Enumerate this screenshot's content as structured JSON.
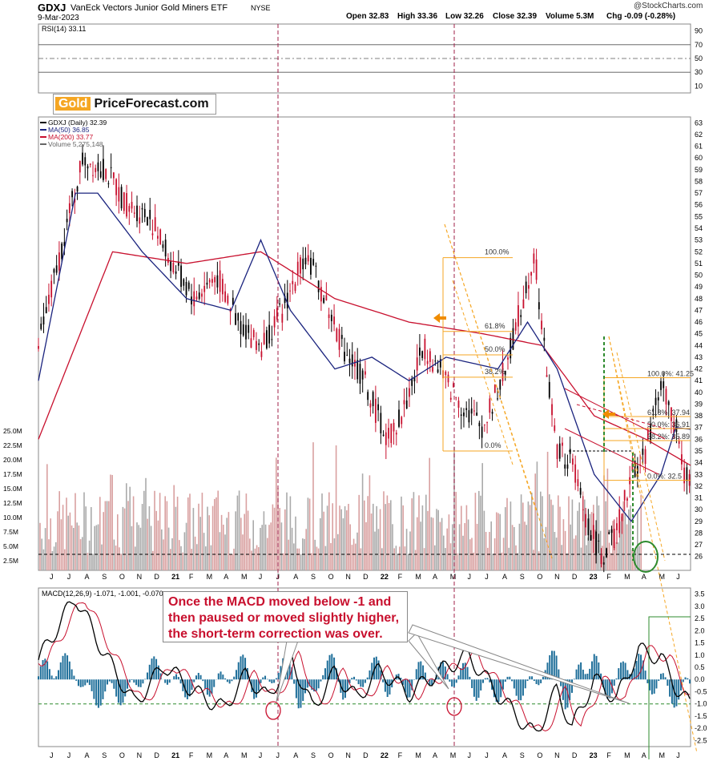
{
  "header": {
    "symbol": "GDXJ",
    "name": "VanEck Vectors Junior Gold Miners ETF",
    "exchange": "NYSE",
    "date": "9-Mar-2023",
    "open": "Open 32.83",
    "high": "High 33.36",
    "low": "Low 32.26",
    "close": "Close 32.39",
    "volume": "Volume 5.3M",
    "chg": "Chg -0.09 (-0.28%)",
    "copyright": "@StockCharts.com"
  },
  "logo": {
    "gold": "Gold",
    "rest": "PriceForecast.com"
  },
  "annotation": {
    "line1": "Once the MACD moved below -1 and",
    "line2": "then paused or moved slightly higher,",
    "line3": "the short-term correction was over."
  },
  "colors": {
    "up": "#000000",
    "down": "#c8102e",
    "ma50": "#1a237e",
    "ma200": "#c8102e",
    "fib": "#f5a623",
    "green": "#2e8b2e",
    "volume": "#d9a0a0",
    "hist": "#1f6f9a"
  },
  "chart_data": [
    {
      "type": "line",
      "panel": "rsi",
      "title": "RSI(14) 33.11",
      "yticks": [
        10,
        30,
        50,
        70,
        90
      ],
      "ylim": [
        0,
        100
      ],
      "reference_lines": [
        30,
        50,
        70
      ],
      "series": [
        {
          "name": "RSI(14)",
          "last": 33.11
        }
      ]
    },
    {
      "type": "line",
      "panel": "price",
      "title": "GDXJ (Daily) 32.39",
      "legend": [
        "GDXJ (Daily) 32.39",
        "MA(50) 36.85",
        "MA(200) 33.77",
        "Volume 5,275,148"
      ],
      "ylim": [
        25,
        63
      ],
      "yticks": [
        26,
        27,
        28,
        29,
        30,
        31,
        32,
        33,
        34,
        35,
        36,
        37,
        38,
        39,
        40,
        41,
        42,
        43,
        44,
        45,
        46,
        47,
        48,
        49,
        50,
        51,
        52,
        53,
        54,
        55,
        56,
        57,
        58,
        59,
        60,
        61,
        62,
        63
      ],
      "volume_ticks": [
        "2.5M",
        "5.0M",
        "7.5M",
        "10.0M",
        "12.5M",
        "15.0M",
        "17.5M",
        "20.0M",
        "22.5M",
        "25.0M"
      ],
      "x_months": [
        "J",
        "J",
        "A",
        "S",
        "O",
        "N",
        "D",
        "21",
        "F",
        "M",
        "A",
        "M",
        "J",
        "J",
        "A",
        "S",
        "O",
        "N",
        "D",
        "22",
        "F",
        "M",
        "A",
        "M",
        "J",
        "J",
        "A",
        "S",
        "O",
        "N",
        "D",
        "23",
        "F",
        "M",
        "A",
        "M",
        "J"
      ],
      "price_path": [
        [
          0,
          44
        ],
        [
          3,
          52
        ],
        [
          6,
          60
        ],
        [
          9,
          59
        ],
        [
          12,
          56
        ],
        [
          15,
          55
        ],
        [
          18,
          51
        ],
        [
          21,
          48
        ],
        [
          24,
          50
        ],
        [
          27,
          46
        ],
        [
          30,
          44
        ],
        [
          33,
          47
        ],
        [
          36,
          52
        ],
        [
          38,
          49
        ],
        [
          41,
          44
        ],
        [
          44,
          41
        ],
        [
          47,
          36
        ],
        [
          49,
          38
        ],
        [
          52,
          44
        ],
        [
          54,
          42
        ],
        [
          57,
          39
        ],
        [
          60,
          37
        ],
        [
          63,
          42
        ],
        [
          65,
          47
        ],
        [
          67,
          52
        ],
        [
          68,
          45
        ],
        [
          70,
          35
        ],
        [
          72,
          34
        ],
        [
          74,
          29
        ],
        [
          76,
          26
        ],
        [
          78,
          28
        ],
        [
          80,
          33
        ],
        [
          82,
          35
        ],
        [
          84,
          41
        ],
        [
          85,
          39
        ],
        [
          86,
          37
        ],
        [
          87,
          33
        ],
        [
          88,
          32.39
        ]
      ],
      "ma50_path": [
        [
          0,
          41
        ],
        [
          5,
          57
        ],
        [
          8,
          57
        ],
        [
          14,
          52
        ],
        [
          20,
          48
        ],
        [
          26,
          47
        ],
        [
          30,
          53
        ],
        [
          34,
          47
        ],
        [
          40,
          42
        ],
        [
          45,
          43
        ],
        [
          50,
          41
        ],
        [
          55,
          43
        ],
        [
          62,
          42
        ],
        [
          66,
          46
        ],
        [
          70,
          42
        ],
        [
          75,
          33
        ],
        [
          80,
          29
        ],
        [
          84,
          33
        ],
        [
          86,
          37
        ],
        [
          88,
          36.85
        ]
      ],
      "ma200_path": [
        [
          0,
          36
        ],
        [
          10,
          52
        ],
        [
          20,
          51
        ],
        [
          30,
          52
        ],
        [
          40,
          48
        ],
        [
          50,
          46
        ],
        [
          60,
          45
        ],
        [
          68,
          44
        ],
        [
          75,
          38
        ],
        [
          82,
          36
        ],
        [
          88,
          33.77
        ]
      ],
      "fib_left": {
        "high": 51.5,
        "low": 35,
        "levels": [
          {
            "label": "100.0%",
            "value": 51.5
          },
          {
            "label": "61.8%",
            "value": 45.2
          },
          {
            "label": "50.0%",
            "value": 43.2
          },
          {
            "label": "38.2%",
            "value": 41.3
          },
          {
            "label": "0.0%",
            "value": 35
          }
        ]
      },
      "fib_right": {
        "high": 41.25,
        "low": 32.5,
        "levels": [
          {
            "label": "100.0%: 41.25",
            "value": 41.25
          },
          {
            "label": "61.8%: 37.94",
            "value": 37.94
          },
          {
            "label": "50.0%: 36.91",
            "value": 36.91
          },
          {
            "label": "38.2%: 35.89",
            "value": 35.89
          },
          {
            "label": "0.0%: 32.5",
            "value": 32.5
          }
        ]
      }
    },
    {
      "type": "line",
      "panel": "macd",
      "title": "MACD(12,26,9) -1.071, -1.001, -0.070",
      "yticks": [
        -2.5,
        -2.0,
        -1.5,
        -1.0,
        -0.5,
        0.0,
        0.5,
        1.0,
        1.5,
        2.0,
        2.5,
        3.0,
        3.5
      ],
      "ylim": [
        -2.75,
        3.75
      ],
      "reference_line": -1.0,
      "series": [
        {
          "name": "MACD",
          "last": -1.071
        },
        {
          "name": "Signal",
          "last": -1.001
        },
        {
          "name": "Histogram",
          "last": -0.07
        }
      ]
    }
  ]
}
